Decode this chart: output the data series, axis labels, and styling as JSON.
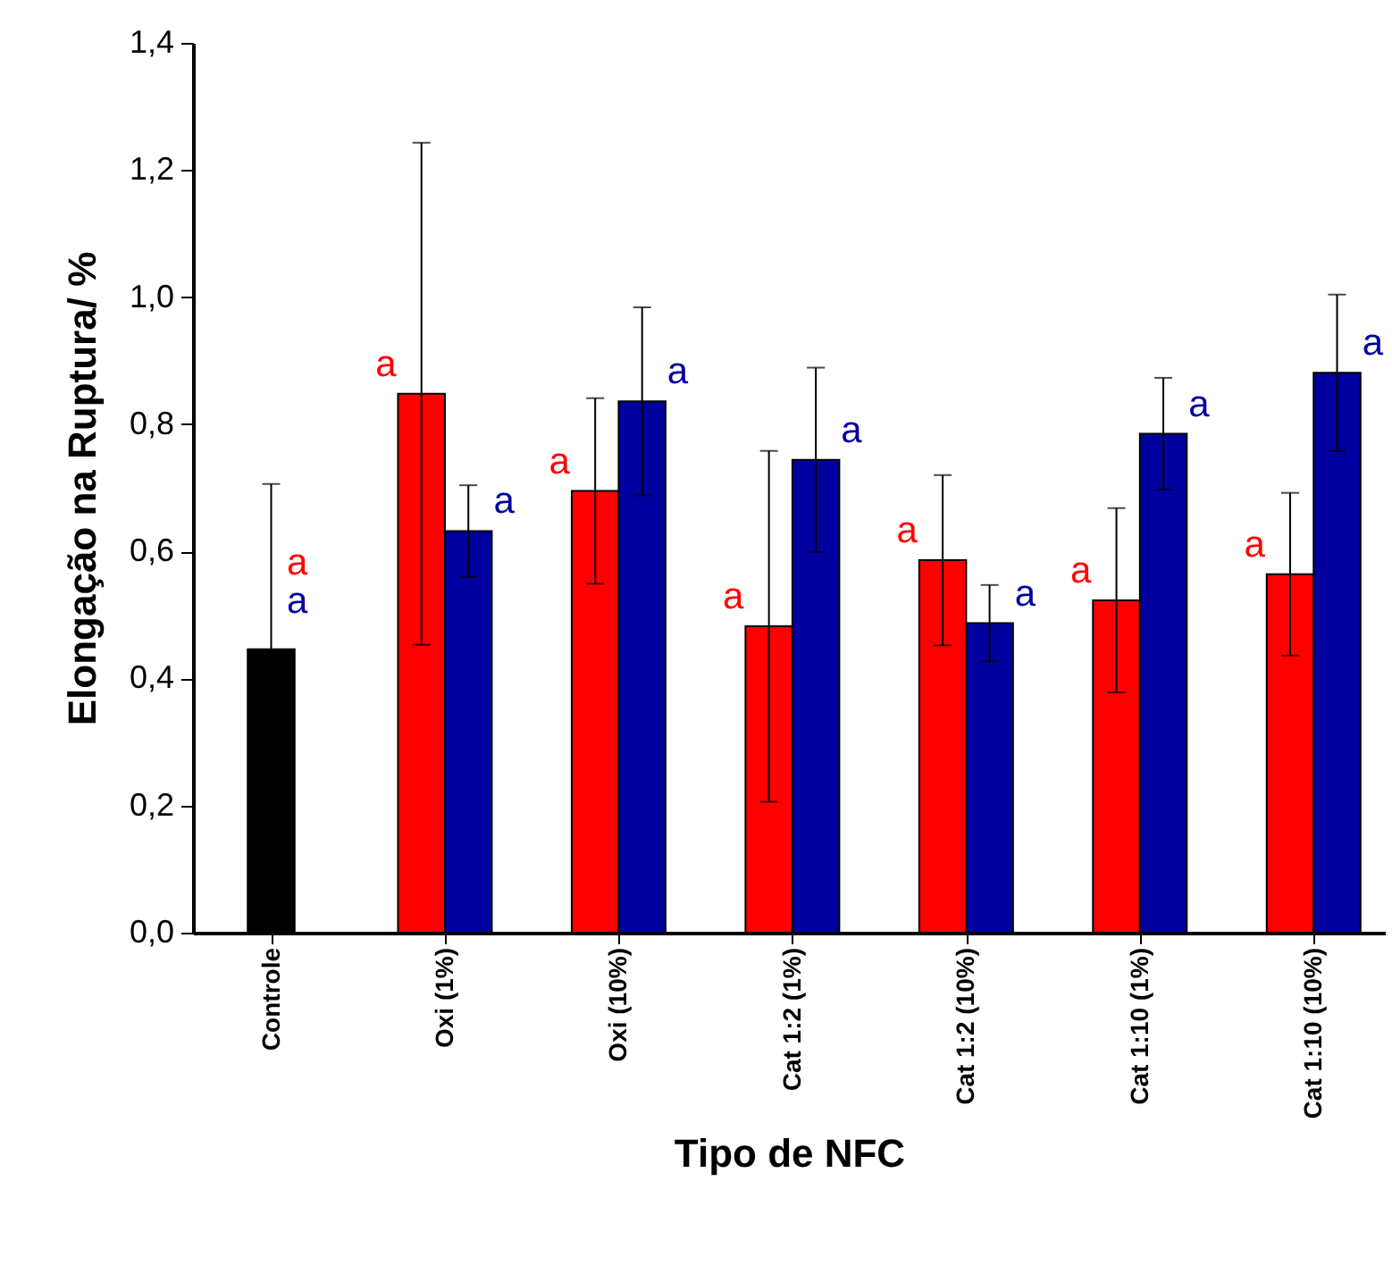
{
  "chart_data": {
    "type": "bar",
    "xlabel": "Tipo de NFC",
    "ylabel": "Elongação na Ruptura/ %",
    "categories": [
      "Controle",
      "Oxi (1%)",
      "Oxi (10%)",
      "Cat 1:2 (1%)",
      "Cat 1:2 (10%)",
      "Cat 1:10 (1%)",
      "Cat 1:10 (10%)"
    ],
    "series": [
      {
        "color": "#000000",
        "values": [
          0.446,
          null,
          null,
          null,
          null,
          null,
          null
        ],
        "errors": [
          0.26,
          null,
          null,
          null,
          null,
          null,
          null
        ]
      },
      {
        "color": "#ff0000",
        "values": [
          null,
          0.848,
          0.695,
          0.482,
          0.586,
          0.523,
          0.564
        ],
        "errors": [
          null,
          0.395,
          0.146,
          0.276,
          0.134,
          0.145,
          0.128
        ],
        "value_labels": [
          null,
          "a",
          "a",
          "a",
          "a",
          "a",
          "a"
        ]
      },
      {
        "color": "#0000a0",
        "values": [
          null,
          0.632,
          0.836,
          0.744,
          0.487,
          0.785,
          0.881
        ],
        "errors": [
          null,
          0.072,
          0.148,
          0.145,
          0.06,
          0.088,
          0.123
        ],
        "value_labels": [
          null,
          "a",
          "a",
          "a",
          "a",
          "a",
          "a"
        ]
      }
    ],
    "annotations": [
      {
        "text": "a",
        "x": "Controle",
        "y": 0.58
      },
      {
        "text": "a",
        "x": "Controle",
        "y": 0.52
      }
    ],
    "ylim": [
      0,
      1.4
    ],
    "yticks": [
      {
        "value": 0,
        "label": "0,0"
      },
      {
        "value": 0.2,
        "label": "0,2"
      },
      {
        "value": 0.4,
        "label": "0,4"
      },
      {
        "value": 0.6,
        "label": "0,6"
      },
      {
        "value": 0.8,
        "label": "0,8"
      },
      {
        "value": 1.0,
        "label": "1,0"
      },
      {
        "value": 1.2,
        "label": "1,2"
      },
      {
        "value": 1.4,
        "label": "1,4"
      }
    ],
    "grid": false,
    "legend": false
  }
}
